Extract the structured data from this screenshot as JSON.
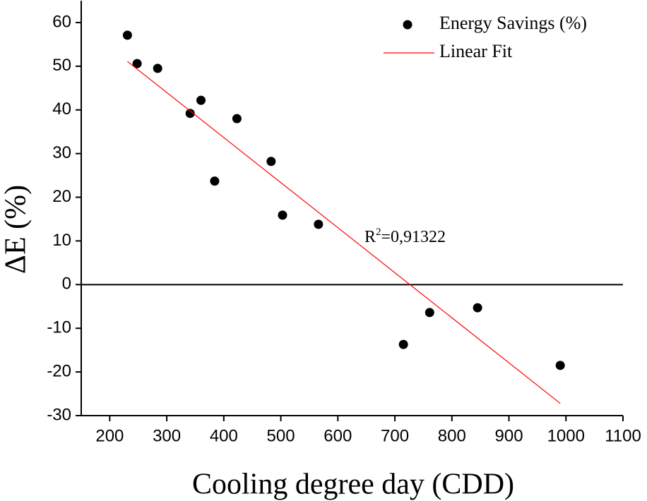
{
  "chart_data": {
    "type": "scatter",
    "x_label": "Cooling degree day (CDD)",
    "y_label": "ΔE (%)",
    "annotation": {
      "base": "R",
      "sup": "2",
      "rest": "=0,91322"
    },
    "series": [
      {
        "name": "Energy Savings (%)",
        "type": "scatter",
        "color": "#000000",
        "x": [
          231,
          248,
          284,
          341,
          360,
          384,
          423,
          483,
          503,
          566,
          715,
          761,
          845,
          990
        ],
        "values": [
          57.1,
          50.6,
          49.5,
          39.2,
          42.2,
          23.7,
          38.0,
          28.2,
          15.9,
          13.8,
          -13.7,
          -6.4,
          -5.3,
          -18.5
        ]
      },
      {
        "name": "Linear Fit",
        "type": "line",
        "color": "#ff0000",
        "x": [
          231,
          990
        ],
        "values": [
          51.1,
          -27.2
        ]
      }
    ],
    "xlim": [
      150,
      1100
    ],
    "xticks": [
      200,
      300,
      400,
      500,
      600,
      700,
      800,
      900,
      1000,
      1100
    ],
    "ylim": [
      -30,
      65
    ],
    "yticks": [
      -30,
      -20,
      -10,
      0,
      10,
      20,
      30,
      40,
      50,
      60
    ],
    "reference_line_y": 0,
    "legend": "top-right"
  }
}
